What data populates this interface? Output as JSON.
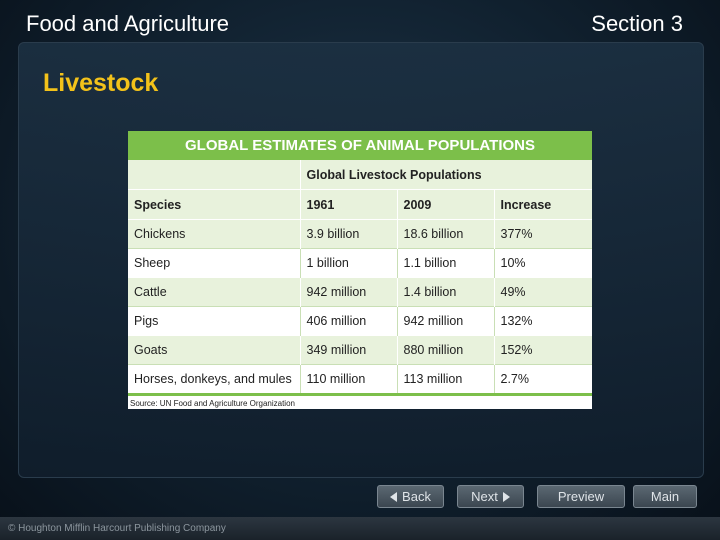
{
  "header": {
    "left_title": "Food and Agriculture",
    "right_title": "Section 3",
    "subtitle": "Livestock"
  },
  "table": {
    "title": "GLOBAL ESTIMATES OF ANIMAL POPULATIONS",
    "group_header": "Global Livestock Populations",
    "columns": [
      "Species",
      "1961",
      "2009",
      "Increase"
    ],
    "rows": [
      [
        "Chickens",
        "3.9 billion",
        "18.6 billion",
        "377%"
      ],
      [
        "Sheep",
        "1 billion",
        "1.1 billion",
        "10%"
      ],
      [
        "Cattle",
        "942 million",
        "1.4 billion",
        "49%"
      ],
      [
        "Pigs",
        "406 million",
        "942 million",
        "132%"
      ],
      [
        "Goats",
        "349 million",
        "880 million",
        "152%"
      ],
      [
        "Horses, donkeys, and mules",
        "110 million",
        "113 million",
        "2.7%"
      ]
    ],
    "source": "Source: UN Food and Agriculture Organization"
  },
  "nav": {
    "back": "Back",
    "next": "Next",
    "preview": "Preview",
    "main": "Main"
  },
  "footer": {
    "copyright": "© Houghton Mifflin Harcourt Publishing Company"
  },
  "colors": {
    "accent_green": "#7cbf4a",
    "subtitle_yellow": "#f3c21a"
  }
}
